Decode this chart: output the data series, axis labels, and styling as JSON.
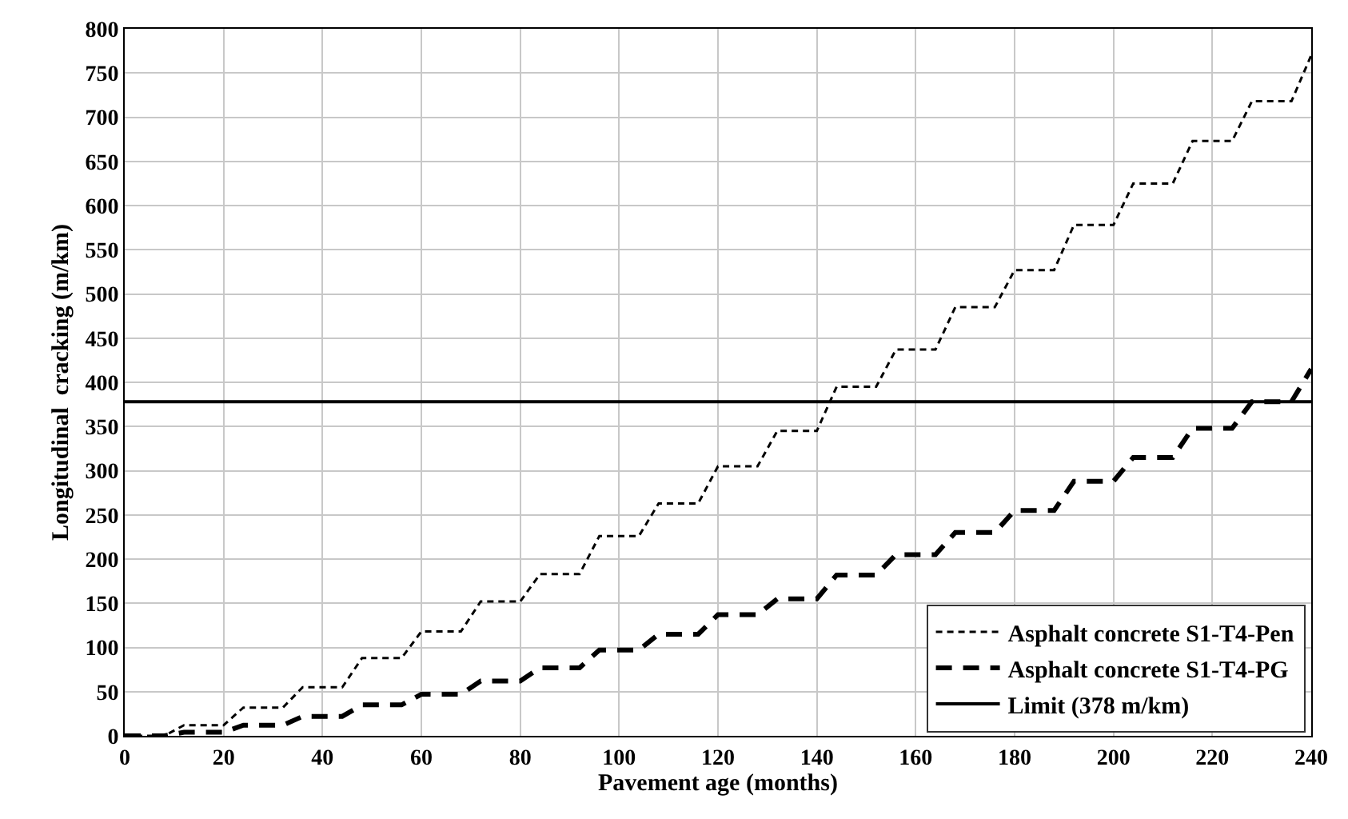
{
  "chart_data": {
    "type": "line",
    "xlabel": "Pavement age (months)",
    "ylabel": "Longitudinal  cracking (m/km)",
    "x": [
      0,
      8,
      12,
      20,
      24,
      32,
      36,
      44,
      48,
      56,
      60,
      68,
      72,
      80,
      84,
      92,
      96,
      104,
      108,
      116,
      120,
      128,
      132,
      140,
      144,
      152,
      156,
      164,
      168,
      176,
      180,
      188,
      192,
      200,
      204,
      212,
      216,
      224,
      228,
      236,
      240
    ],
    "series": [
      {
        "name": "Asphalt concrete S1-T4-Pen",
        "color": "#000000",
        "line_style": "dotted",
        "values": [
          0,
          0,
          12,
          12,
          32,
          32,
          55,
          55,
          88,
          88,
          118,
          118,
          152,
          152,
          183,
          183,
          226,
          226,
          263,
          263,
          305,
          305,
          345,
          345,
          395,
          395,
          437,
          437,
          485,
          485,
          527,
          527,
          578,
          578,
          625,
          625,
          673,
          673,
          718,
          718,
          770
        ]
      },
      {
        "name": "Asphalt concrete S1-T4-PG",
        "color": "#000000",
        "line_style": "dashed",
        "values": [
          0,
          0,
          4,
          4,
          12,
          12,
          22,
          22,
          35,
          35,
          47,
          47,
          62,
          62,
          77,
          77,
          97,
          97,
          115,
          115,
          137,
          137,
          155,
          155,
          182,
          182,
          205,
          205,
          230,
          230,
          255,
          255,
          288,
          288,
          315,
          315,
          348,
          348,
          378,
          378,
          415
        ]
      }
    ],
    "ref_lines": [
      {
        "axis": "y",
        "value": 378,
        "label": "Limit (378 m/km)",
        "color": "#000000",
        "line_style": "solid"
      }
    ],
    "xlim": [
      0,
      240
    ],
    "xticks": [
      0,
      20,
      40,
      60,
      80,
      100,
      120,
      140,
      160,
      180,
      200,
      220,
      240
    ],
    "ylim": [
      0,
      800
    ],
    "yticks": [
      0,
      50,
      100,
      150,
      200,
      250,
      300,
      350,
      400,
      450,
      500,
      550,
      600,
      650,
      700,
      750,
      800
    ],
    "grid": true,
    "legend": "bottom right",
    "marker": "none"
  }
}
